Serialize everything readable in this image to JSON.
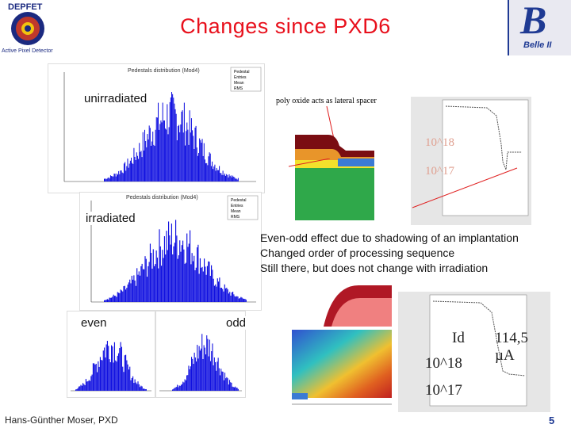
{
  "slide": {
    "title": "Changes since PXD6",
    "logo_left_text": [
      "DEPFET",
      "Active Pixel Detector"
    ],
    "logo_right_text": "Belle II",
    "hist1": {
      "title": "Pedestals distribution (Mod4)",
      "label": "unirradiated",
      "legend": [
        "Pedestal",
        "Entries",
        "Mean",
        "RMS"
      ]
    },
    "hist2": {
      "title": "Pedestals distribution (Mod4)",
      "label": "irradiated",
      "legend": [
        "Pedestal",
        "Entries",
        "Mean",
        "RMS"
      ]
    },
    "hist3": {
      "label": "even"
    },
    "hist4": {
      "label": "odd"
    },
    "sim_top": {
      "annotation": "poly oxide acts as lateral spacer"
    },
    "curve_top": {
      "labels": [
        "10^18",
        "10^17"
      ]
    },
    "curve_bottom": {
      "id_label": "Id",
      "id_value": "114,5 µA",
      "labels": [
        "10^18",
        "10^17"
      ]
    },
    "notes": [
      "Even-odd effect due to shadowing of an implantation",
      "Changed order of processing sequence",
      "Still there, but does not change with irradiation"
    ],
    "footer": "Hans-Günther Moser, PXD",
    "page": "5",
    "colors": {
      "title": "#e8101c",
      "hist": "#1010e0",
      "accent": "#1f3a93"
    }
  }
}
